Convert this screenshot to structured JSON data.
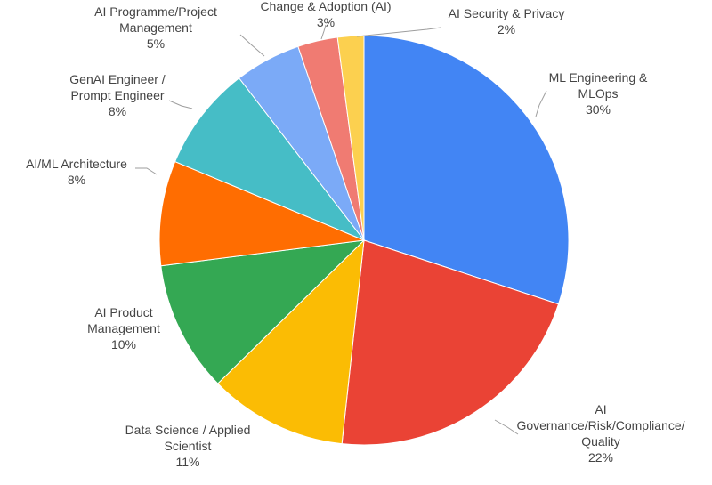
{
  "chart_data": {
    "type": "pie",
    "title": "",
    "slices": [
      {
        "label_lines": [
          "ML Engineering &",
          "MLOps"
        ],
        "percent_label": "30%",
        "value": 30.5,
        "color": "#4285F4"
      },
      {
        "label_lines": [
          "AI",
          "Governance/Risk/Compliance/",
          "Quality"
        ],
        "percent_label": "22%",
        "value": 22.0,
        "color": "#EA4335"
      },
      {
        "label_lines": [
          "Data Science / Applied",
          "Scientist"
        ],
        "percent_label": "11%",
        "value": 11.1,
        "color": "#FBBC04"
      },
      {
        "label_lines": [
          "AI Product",
          "Management"
        ],
        "percent_label": "10%",
        "value": 10.5,
        "color": "#34A853"
      },
      {
        "label_lines": [
          "AI/ML Architecture"
        ],
        "percent_label": "8%",
        "value": 8.4,
        "color": "#FF6D01"
      },
      {
        "label_lines": [
          "GenAI Engineer /",
          "Prompt Engineer"
        ],
        "percent_label": "8%",
        "value": 8.4,
        "color": "#46BDC6"
      },
      {
        "label_lines": [
          "AI Programme/Project",
          "Management"
        ],
        "percent_label": "5%",
        "value": 5.3,
        "color": "#7BAAF7"
      },
      {
        "label_lines": [
          "Change & Adoption (AI)"
        ],
        "percent_label": "3%",
        "value": 3.2,
        "color": "#F07B72"
      },
      {
        "label_lines": [
          "AI Security & Privacy"
        ],
        "percent_label": "2%",
        "value": 2.1,
        "color": "#FCD04F"
      }
    ],
    "legend": "none"
  }
}
